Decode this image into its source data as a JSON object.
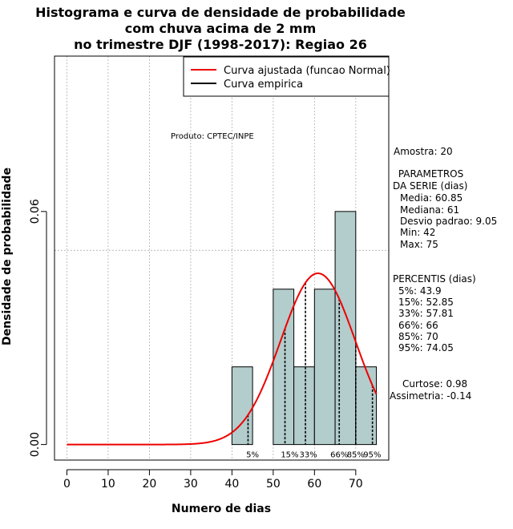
{
  "chart_data": {
    "type": "histogram",
    "title_lines": [
      "Histograma e curva de densidade de probabilidade",
      "com chuva acima de 2 mm",
      "no trimestre DJF (1998-2017): Regiao 26"
    ],
    "xlabel": "Numero de dias",
    "ylabel": "Densidade de probabilidade",
    "xlim": [
      -3,
      78
    ],
    "ylim": [
      -0.004,
      0.1
    ],
    "x_ticks": [
      0,
      10,
      20,
      30,
      40,
      50,
      60,
      70
    ],
    "x_tick_labels": [
      "0",
      "10",
      "20",
      "30",
      "40",
      "50",
      "60",
      "70"
    ],
    "y_ticks": [
      0.0,
      0.06
    ],
    "y_tick_labels": [
      "0.00",
      "0.06"
    ],
    "grid_x": [
      0,
      10,
      20,
      30,
      40,
      50,
      60,
      70
    ],
    "grid_y": [
      0.05,
      0.1
    ],
    "bins": [
      {
        "start": 40,
        "end": 45,
        "density": 0.02
      },
      {
        "start": 50,
        "end": 55,
        "density": 0.04
      },
      {
        "start": 55,
        "end": 60,
        "density": 0.02
      },
      {
        "start": 60,
        "end": 65,
        "density": 0.04
      },
      {
        "start": 65,
        "end": 70,
        "density": 0.06
      },
      {
        "start": 70,
        "end": 75,
        "density": 0.02
      }
    ],
    "normal_fit": {
      "mean": 60.85,
      "sd": 9.05,
      "x_range": [
        0,
        75
      ]
    },
    "percentile_lines": [
      43.9,
      52.85,
      57.81,
      66,
      70,
      74.05
    ],
    "percentile_labels": [
      {
        "x": 45,
        "text": "5%"
      },
      {
        "x": 54,
        "text": "15%"
      },
      {
        "x": 58.5,
        "text": "33%"
      },
      {
        "x": 66,
        "text": "66%"
      },
      {
        "x": 70,
        "text": "85%"
      },
      {
        "x": 74,
        "text": "95%"
      }
    ],
    "legend": [
      {
        "label": "Curva ajustada (funcao Normal)",
        "color": "#ee0000"
      },
      {
        "label": "Curva empirica",
        "color": "#000000"
      }
    ],
    "legend_position": "top-right"
  },
  "annotations": {
    "producer": "Produto: CPTEC/INPE",
    "sample": "Amostra: 20",
    "params_header": [
      " PARAMETROS",
      "DA SERIE (dias)"
    ],
    "params": [
      "Media: 60.85",
      "Mediana: 61",
      "Desvio padrao: 9.05",
      "Min: 42",
      "Max: 75"
    ],
    "percentis_header": "PERCENTIS (dias)",
    "percentis": [
      "5%: 43.9",
      "15%: 52.85",
      "33%: 57.81",
      "66%: 66",
      "85%: 70",
      "95%: 74.05"
    ],
    "curtose": "Curtose: 0.98",
    "assimetria": "Assimetria: -0.14"
  },
  "colors": {
    "bar_fill": "#b3cccc",
    "bar_stroke": "#000000",
    "curve": "#ee0000",
    "grid": "#b0b0b0"
  }
}
